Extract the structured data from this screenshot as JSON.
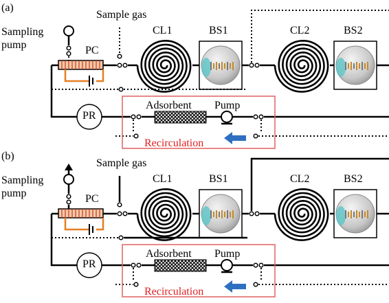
{
  "panels": [
    {
      "label": "(a)",
      "sampling_pump": "Sampling pump",
      "sample_gas": "Sample gas",
      "pc": "PC",
      "cl1": "CL1",
      "bs1": "BS1",
      "cl2": "CL2",
      "bs2": "BS2",
      "pr": "PR",
      "adsorbent": "Adsorbent",
      "pump": "Pump",
      "recirculation": "Recirculation"
    },
    {
      "label": "(b)",
      "sampling_pump": "Sampling pump",
      "sample_gas": "Sample gas",
      "pc": "PC",
      "cl1": "CL1",
      "bs1": "BS1",
      "cl2": "CL2",
      "bs2": "BS2",
      "pr": "PR",
      "adsorbent": "Adsorbent",
      "pump": "Pump",
      "recirculation": "Recirculation"
    }
  ]
}
